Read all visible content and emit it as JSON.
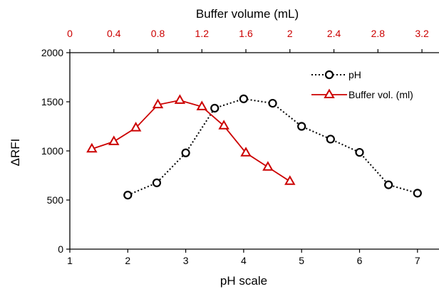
{
  "chart_data": {
    "type": "scatter",
    "ylabel": "ΔRFI",
    "xlabel_bottom": "pH scale",
    "xlabel_top": "Buffer volume (mL)",
    "ylim": [
      0,
      2000
    ],
    "yticks": [
      0,
      500,
      1000,
      1500,
      2000
    ],
    "xlim_bottom": [
      1,
      7.2
    ],
    "xticks_bottom": [
      1,
      2,
      3,
      4,
      5,
      6,
      7
    ],
    "xlim_top": [
      0,
      3.2
    ],
    "xticks_top": [
      "0",
      "0.4",
      "0.8",
      "1.2",
      "1.6",
      "2",
      "2.4",
      "2.8",
      "3.2"
    ],
    "grid": false,
    "legend_position": "top-right",
    "colors": {
      "ph": "#000000",
      "buffer": "#cc0000",
      "top_axis": "#cc0000"
    },
    "series": [
      {
        "name": "pH",
        "axis": "bottom",
        "marker": "circle",
        "line": "dotted",
        "x": [
          2,
          2.5,
          3,
          3.5,
          4,
          4.5,
          5,
          5.5,
          6,
          6.5,
          7
        ],
        "y": [
          550,
          675,
          980,
          1435,
          1530,
          1485,
          1250,
          1120,
          985,
          655,
          570
        ]
      },
      {
        "name": "Buffer vol. (ml)",
        "axis": "top",
        "marker": "triangle",
        "line": "solid",
        "x": [
          0.2,
          0.4,
          0.6,
          0.8,
          1.0,
          1.2,
          1.4,
          1.6,
          1.8,
          2.0
        ],
        "y": [
          1020,
          1095,
          1235,
          1470,
          1515,
          1450,
          1255,
          980,
          835,
          690
        ]
      }
    ]
  }
}
